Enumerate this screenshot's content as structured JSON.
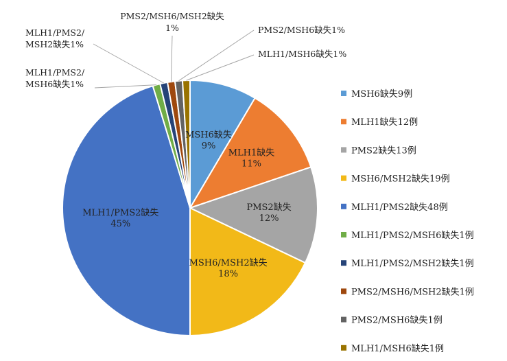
{
  "chart_data": {
    "type": "pie",
    "title": "",
    "legend_position": "right",
    "slices": [
      {
        "legend": "MSH6缺失9例",
        "value": 9,
        "label_lines": [
          "MSH6缺失",
          "9%"
        ],
        "percent": "9%",
        "color": "#5b9bd5"
      },
      {
        "legend": "MLH1缺失12例",
        "value": 12,
        "label_lines": [
          "MLH1缺失",
          "11%"
        ],
        "percent": "11%",
        "color": "#ed7d31"
      },
      {
        "legend": "PMS2缺失13例",
        "value": 13,
        "label_lines": [
          "PMS2缺失",
          "12%"
        ],
        "percent": "12%",
        "color": "#a5a5a5"
      },
      {
        "legend": "MSH6/MSH2缺失19例",
        "value": 19,
        "label_lines": [
          "MSH6/MSH2缺失",
          "18%"
        ],
        "percent": "18%",
        "color": "#f2b918"
      },
      {
        "legend": "MLH1/PMS2缺失48例",
        "value": 48,
        "label_lines": [
          "MLH1/PMS2缺失",
          "45%"
        ],
        "percent": "45%",
        "color": "#4472c4"
      },
      {
        "legend": "MLH1/PMS2/MSH6缺失1例",
        "value": 1,
        "label_lines": [
          "MLH1/PMS2/",
          "MSH6缺失1%"
        ],
        "percent": "1%",
        "color": "#70ad47"
      },
      {
        "legend": "MLH1/PMS2/MSH2缺失1例",
        "value": 1,
        "label_lines": [
          "MLH1/PMS2/",
          "MSH2缺失1%"
        ],
        "percent": "1%",
        "color": "#264478"
      },
      {
        "legend": "PMS2/MSH6/MSH2缺失1例",
        "value": 1,
        "label_lines": [
          "PMS2/MSH6/MSH2缺失",
          "1%"
        ],
        "percent": "1%",
        "color": "#9e480e"
      },
      {
        "legend": "PMS2/MSH6缺失1例",
        "value": 1,
        "label_lines": [
          "PMS2/MSH6缺失1%"
        ],
        "percent": "1%",
        "color": "#636363"
      },
      {
        "legend": "MLH1/MSH6缺失1例",
        "value": 1,
        "label_lines": [
          "MLH1/MSH6缺失1%"
        ],
        "percent": "1%",
        "color": "#997300"
      }
    ]
  }
}
